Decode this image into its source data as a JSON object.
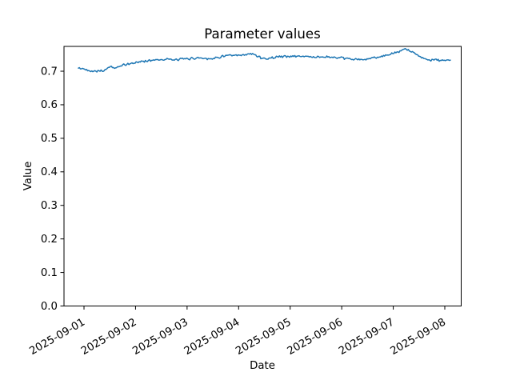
{
  "chart_data": {
    "type": "line",
    "title": "Parameter values",
    "xlabel": "Date",
    "ylabel": "Value",
    "line_color": "#1f77b4",
    "axis_color": "#000000",
    "background_color": "#ffffff",
    "grid": false,
    "legend": "none",
    "x_tick_labels": [
      "2025-09-01",
      "2025-09-02",
      "2025-09-03",
      "2025-09-04",
      "2025-09-05",
      "2025-09-06",
      "2025-09-07",
      "2025-09-08"
    ],
    "y_tick_values": [
      0.0,
      0.1,
      0.2,
      0.3,
      0.4,
      0.5,
      0.6,
      0.7
    ],
    "ylim": [
      0.0,
      0.774
    ],
    "xlim_days": [
      -0.388,
      7.318
    ],
    "x_unit": "days since 2025-09-01",
    "noise_amplitude": 0.004,
    "sample_step_days": 0.02,
    "trend": [
      [
        -0.109,
        0.709
      ],
      [
        -0.016,
        0.707
      ],
      [
        0.078,
        0.703
      ],
      [
        0.186,
        0.7
      ],
      [
        0.279,
        0.702
      ],
      [
        0.373,
        0.701
      ],
      [
        0.45,
        0.707
      ],
      [
        0.497,
        0.716
      ],
      [
        0.543,
        0.712
      ],
      [
        0.605,
        0.708
      ],
      [
        0.683,
        0.714
      ],
      [
        0.76,
        0.718
      ],
      [
        0.854,
        0.721
      ],
      [
        0.947,
        0.724
      ],
      [
        1.04,
        0.727
      ],
      [
        1.164,
        0.73
      ],
      [
        1.319,
        0.733
      ],
      [
        1.474,
        0.735
      ],
      [
        1.63,
        0.736
      ],
      [
        1.754,
        0.733
      ],
      [
        1.878,
        0.736
      ],
      [
        2.018,
        0.737
      ],
      [
        2.157,
        0.739
      ],
      [
        2.281,
        0.74
      ],
      [
        2.437,
        0.737
      ],
      [
        2.592,
        0.74
      ],
      [
        2.685,
        0.745
      ],
      [
        2.794,
        0.747
      ],
      [
        2.949,
        0.746
      ],
      [
        3.104,
        0.748
      ],
      [
        3.259,
        0.752
      ],
      [
        3.368,
        0.746
      ],
      [
        3.461,
        0.738
      ],
      [
        3.554,
        0.737
      ],
      [
        3.663,
        0.741
      ],
      [
        3.802,
        0.744
      ],
      [
        3.957,
        0.744
      ],
      [
        4.144,
        0.745
      ],
      [
        4.33,
        0.744
      ],
      [
        4.516,
        0.742
      ],
      [
        4.702,
        0.743
      ],
      [
        4.889,
        0.74
      ],
      [
        5.075,
        0.738
      ],
      [
        5.23,
        0.736
      ],
      [
        5.385,
        0.734
      ],
      [
        5.478,
        0.735
      ],
      [
        5.602,
        0.74
      ],
      [
        5.757,
        0.744
      ],
      [
        5.912,
        0.749
      ],
      [
        6.036,
        0.754
      ],
      [
        6.13,
        0.759
      ],
      [
        6.192,
        0.764
      ],
      [
        6.238,
        0.767
      ],
      [
        6.3,
        0.762
      ],
      [
        6.378,
        0.756
      ],
      [
        6.455,
        0.749
      ],
      [
        6.549,
        0.743
      ],
      [
        6.642,
        0.736
      ],
      [
        6.735,
        0.732
      ],
      [
        6.828,
        0.735
      ],
      [
        6.921,
        0.732
      ],
      [
        6.999,
        0.731
      ],
      [
        7.061,
        0.734
      ],
      [
        7.108,
        0.733
      ]
    ]
  }
}
